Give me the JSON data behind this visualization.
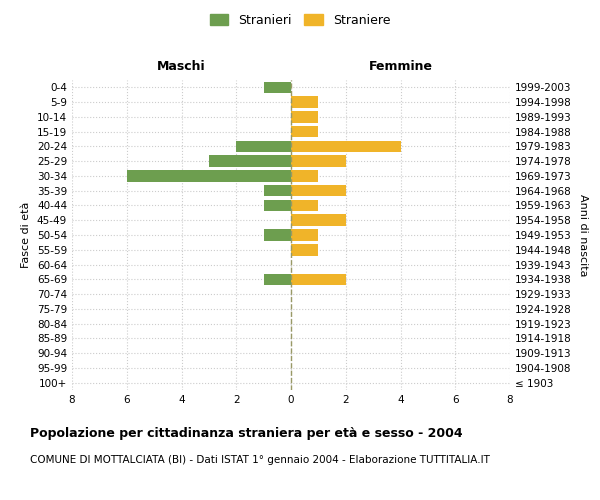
{
  "age_groups": [
    "100+",
    "95-99",
    "90-94",
    "85-89",
    "80-84",
    "75-79",
    "70-74",
    "65-69",
    "60-64",
    "55-59",
    "50-54",
    "45-49",
    "40-44",
    "35-39",
    "30-34",
    "25-29",
    "20-24",
    "15-19",
    "10-14",
    "5-9",
    "0-4"
  ],
  "birth_years": [
    "≤ 1903",
    "1904-1908",
    "1909-1913",
    "1914-1918",
    "1919-1923",
    "1924-1928",
    "1929-1933",
    "1934-1938",
    "1939-1943",
    "1944-1948",
    "1949-1953",
    "1954-1958",
    "1959-1963",
    "1964-1968",
    "1969-1973",
    "1974-1978",
    "1979-1983",
    "1984-1988",
    "1989-1993",
    "1994-1998",
    "1999-2003"
  ],
  "maschi": [
    0,
    0,
    0,
    0,
    0,
    0,
    0,
    1,
    0,
    0,
    1,
    0,
    1,
    1,
    6,
    3,
    2,
    0,
    0,
    0,
    1
  ],
  "femmine": [
    0,
    0,
    0,
    0,
    0,
    0,
    0,
    2,
    0,
    1,
    1,
    2,
    1,
    2,
    1,
    2,
    4,
    1,
    1,
    1,
    0
  ],
  "maschi_color": "#6d9e4f",
  "femmine_color": "#f0b429",
  "background_color": "#ffffff",
  "grid_color": "#cccccc",
  "xlim": 8,
  "title": "Popolazione per cittadinanza straniera per età e sesso - 2004",
  "subtitle": "COMUNE DI MOTTALCIATA (BI) - Dati ISTAT 1° gennaio 2004 - Elaborazione TUTTITALIA.IT",
  "ylabel_left": "Fasce di età",
  "ylabel_right": "Anni di nascita",
  "label_maschi": "Maschi",
  "label_femmine": "Femmine",
  "legend_maschi": "Stranieri",
  "legend_femmine": "Straniere",
  "title_fontsize": 9,
  "subtitle_fontsize": 7.5,
  "tick_fontsize": 7.5,
  "label_fontsize": 9,
  "ylabel_fontsize": 8
}
